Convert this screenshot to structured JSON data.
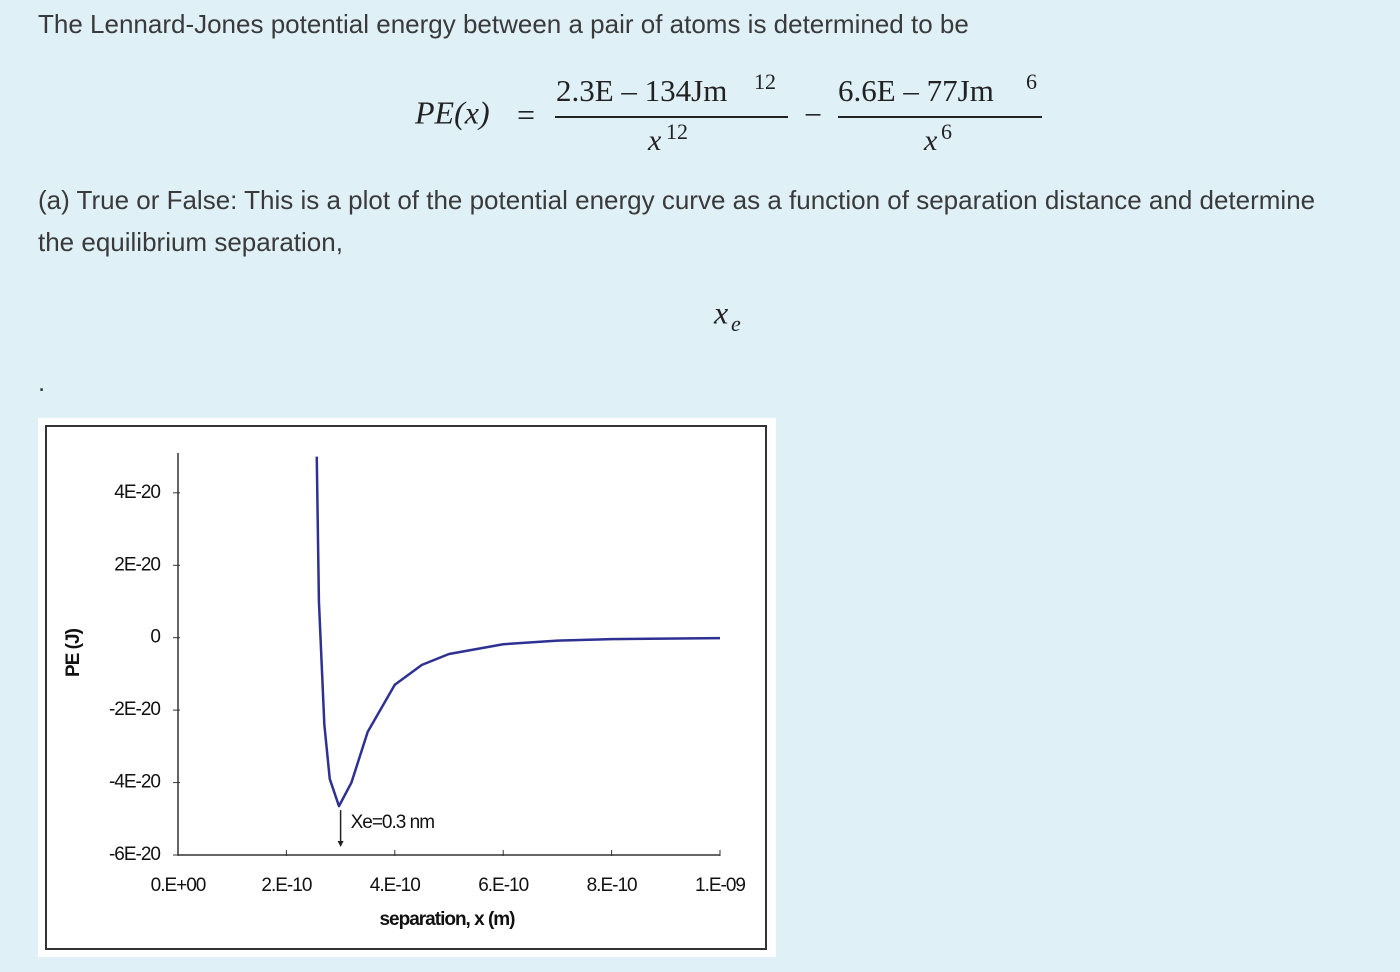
{
  "intro": "The Lennard-Jones potential energy between a pair of atoms is determined to be",
  "formula": {
    "lhs": "PE(x)",
    "equals": "=",
    "num1": "2.3E – 134Jm",
    "num1_exp": "12",
    "den1": "x",
    "den1_exp": "12",
    "minus": "−",
    "num2": "6.6E – 77Jm",
    "num2_exp": "6",
    "den2": "x",
    "den2_exp": "6"
  },
  "question_lines": [
    "(a) True or False: This is a plot of the potential energy curve as a function of separation distance and determine",
    "the equilibrium separation,"
  ],
  "symbol": "x",
  "symbol_sub": "e",
  "period": ".",
  "chart_data": {
    "type": "line",
    "x_label": "separation, x (m)",
    "y_label": "PE (J)",
    "annotation": "Xe=0.3 nm",
    "annotation_x": 3e-10,
    "color": "#2e3192",
    "x": [
      2.56e-10,
      2.6e-10,
      2.7e-10,
      2.8e-10,
      2.97e-10,
      3.2e-10,
      3.5e-10,
      4e-10,
      4.5e-10,
      5e-10,
      6e-10,
      7e-10,
      8e-10,
      1e-09
    ],
    "values": [
      5e-20,
      1e-20,
      -2.4e-20,
      -3.9e-20,
      -4.65e-20,
      -4e-20,
      -2.6e-20,
      -1.3e-20,
      -7.5e-21,
      -4.5e-21,
      -1.8e-21,
      -8e-22,
      -4e-22,
      -1e-22
    ],
    "xlim": [
      0,
      1e-09
    ],
    "ylim": [
      -6e-20,
      5.1e-20
    ],
    "xticks": [
      {
        "value": 0,
        "label": "0.E+00"
      },
      {
        "value": 2e-10,
        "label": "2.E-10"
      },
      {
        "value": 4e-10,
        "label": "4.E-10"
      },
      {
        "value": 6e-10,
        "label": "6.E-10"
      },
      {
        "value": 8e-10,
        "label": "8.E-10"
      },
      {
        "value": 1e-09,
        "label": "1.E-09"
      }
    ],
    "yticks": [
      {
        "value": -6e-20,
        "label": "-6E-20"
      },
      {
        "value": -4e-20,
        "label": "-4E-20"
      },
      {
        "value": -2e-20,
        "label": "-2E-20"
      },
      0,
      {
        "value": 2e-20,
        "label": "2E-20"
      },
      {
        "value": 4e-20,
        "label": "4E-20"
      }
    ]
  }
}
